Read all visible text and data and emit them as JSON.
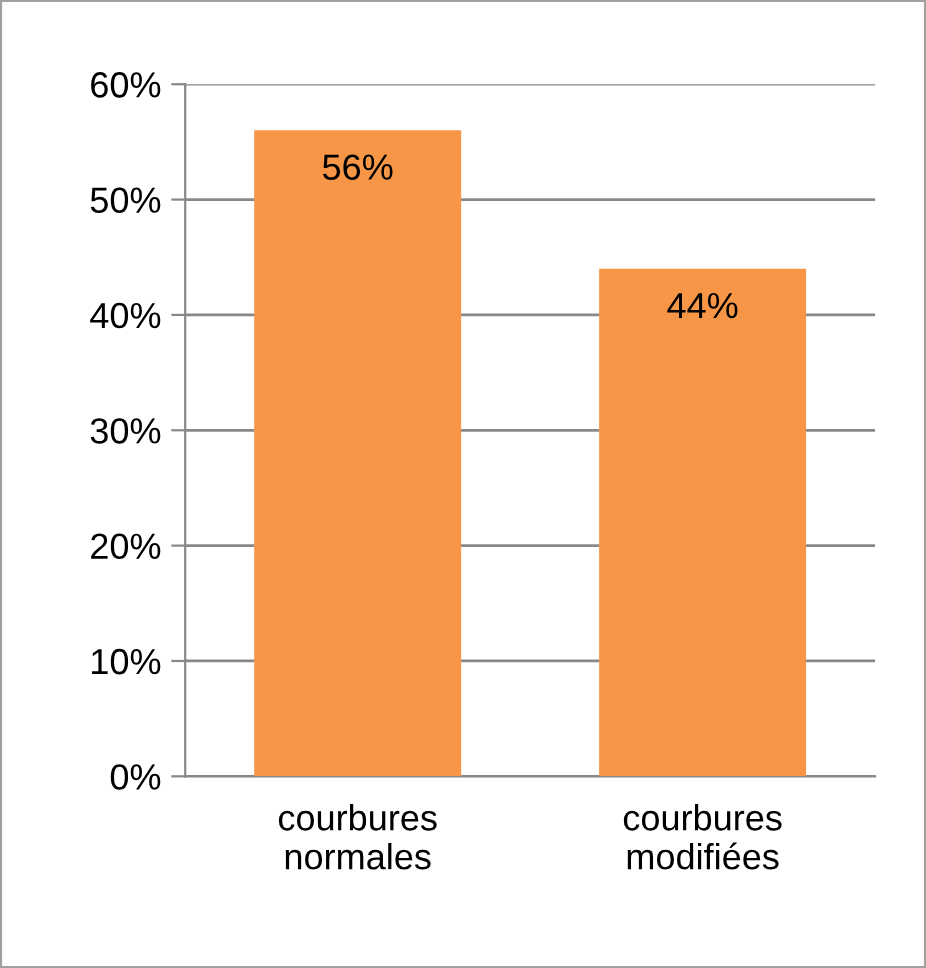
{
  "chart_data": {
    "type": "bar",
    "categories": [
      "courbures\nnormales",
      "courbures\nmodifiées"
    ],
    "values": [
      56,
      44
    ],
    "color": "#f79646",
    "value_labels": [
      "56%",
      "44%"
    ],
    "ylim": [
      0,
      60
    ],
    "yticks": [
      {
        "value": 0,
        "label": "0%"
      },
      {
        "value": 10,
        "label": "10%"
      },
      {
        "value": 20,
        "label": "20%"
      },
      {
        "value": 30,
        "label": "30%"
      },
      {
        "value": 40,
        "label": "40%"
      },
      {
        "value": 50,
        "label": "50%"
      },
      {
        "value": 60,
        "label": "60%"
      }
    ],
    "grid": "y",
    "legend": false
  }
}
